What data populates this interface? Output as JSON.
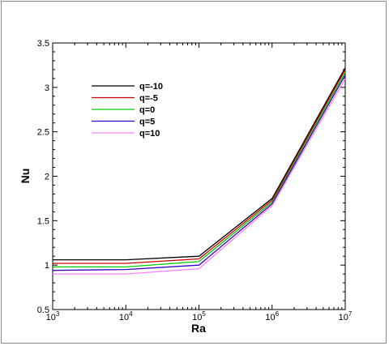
{
  "chart_data": {
    "type": "line",
    "title": "",
    "xlabel": "Ra",
    "ylabel": "Nu",
    "x_scale": "log",
    "x": [
      1000,
      10000,
      100000,
      1000000,
      10000000
    ],
    "x_ticks": [
      {
        "base": "10",
        "exp": "3"
      },
      {
        "base": "10",
        "exp": "4"
      },
      {
        "base": "10",
        "exp": "5"
      },
      {
        "base": "10",
        "exp": "6"
      },
      {
        "base": "10",
        "exp": "7"
      }
    ],
    "y_ticks": [
      "0.5",
      "1",
      "1.5",
      "2",
      "2.5",
      "3",
      "3.5"
    ],
    "xlim": [
      1000,
      10000000
    ],
    "ylim": [
      0.5,
      3.5
    ],
    "grid": false,
    "legend_placement": "top-left",
    "series": [
      {
        "name": "q=-10",
        "color": "#000000",
        "values": [
          1.06,
          1.06,
          1.1,
          1.75,
          3.22
        ]
      },
      {
        "name": "q=-5",
        "color": "#cc0000",
        "values": [
          1.02,
          1.02,
          1.07,
          1.73,
          3.2
        ]
      },
      {
        "name": "q=0",
        "color": "#00cc00",
        "values": [
          0.98,
          0.98,
          1.04,
          1.71,
          3.17
        ]
      },
      {
        "name": "q=5",
        "color": "#3300cc",
        "values": [
          0.94,
          0.95,
          1.0,
          1.69,
          3.14
        ]
      },
      {
        "name": "q=10",
        "color": "#ff80ff",
        "values": [
          0.9,
          0.9,
          0.96,
          1.67,
          3.1
        ]
      }
    ]
  }
}
